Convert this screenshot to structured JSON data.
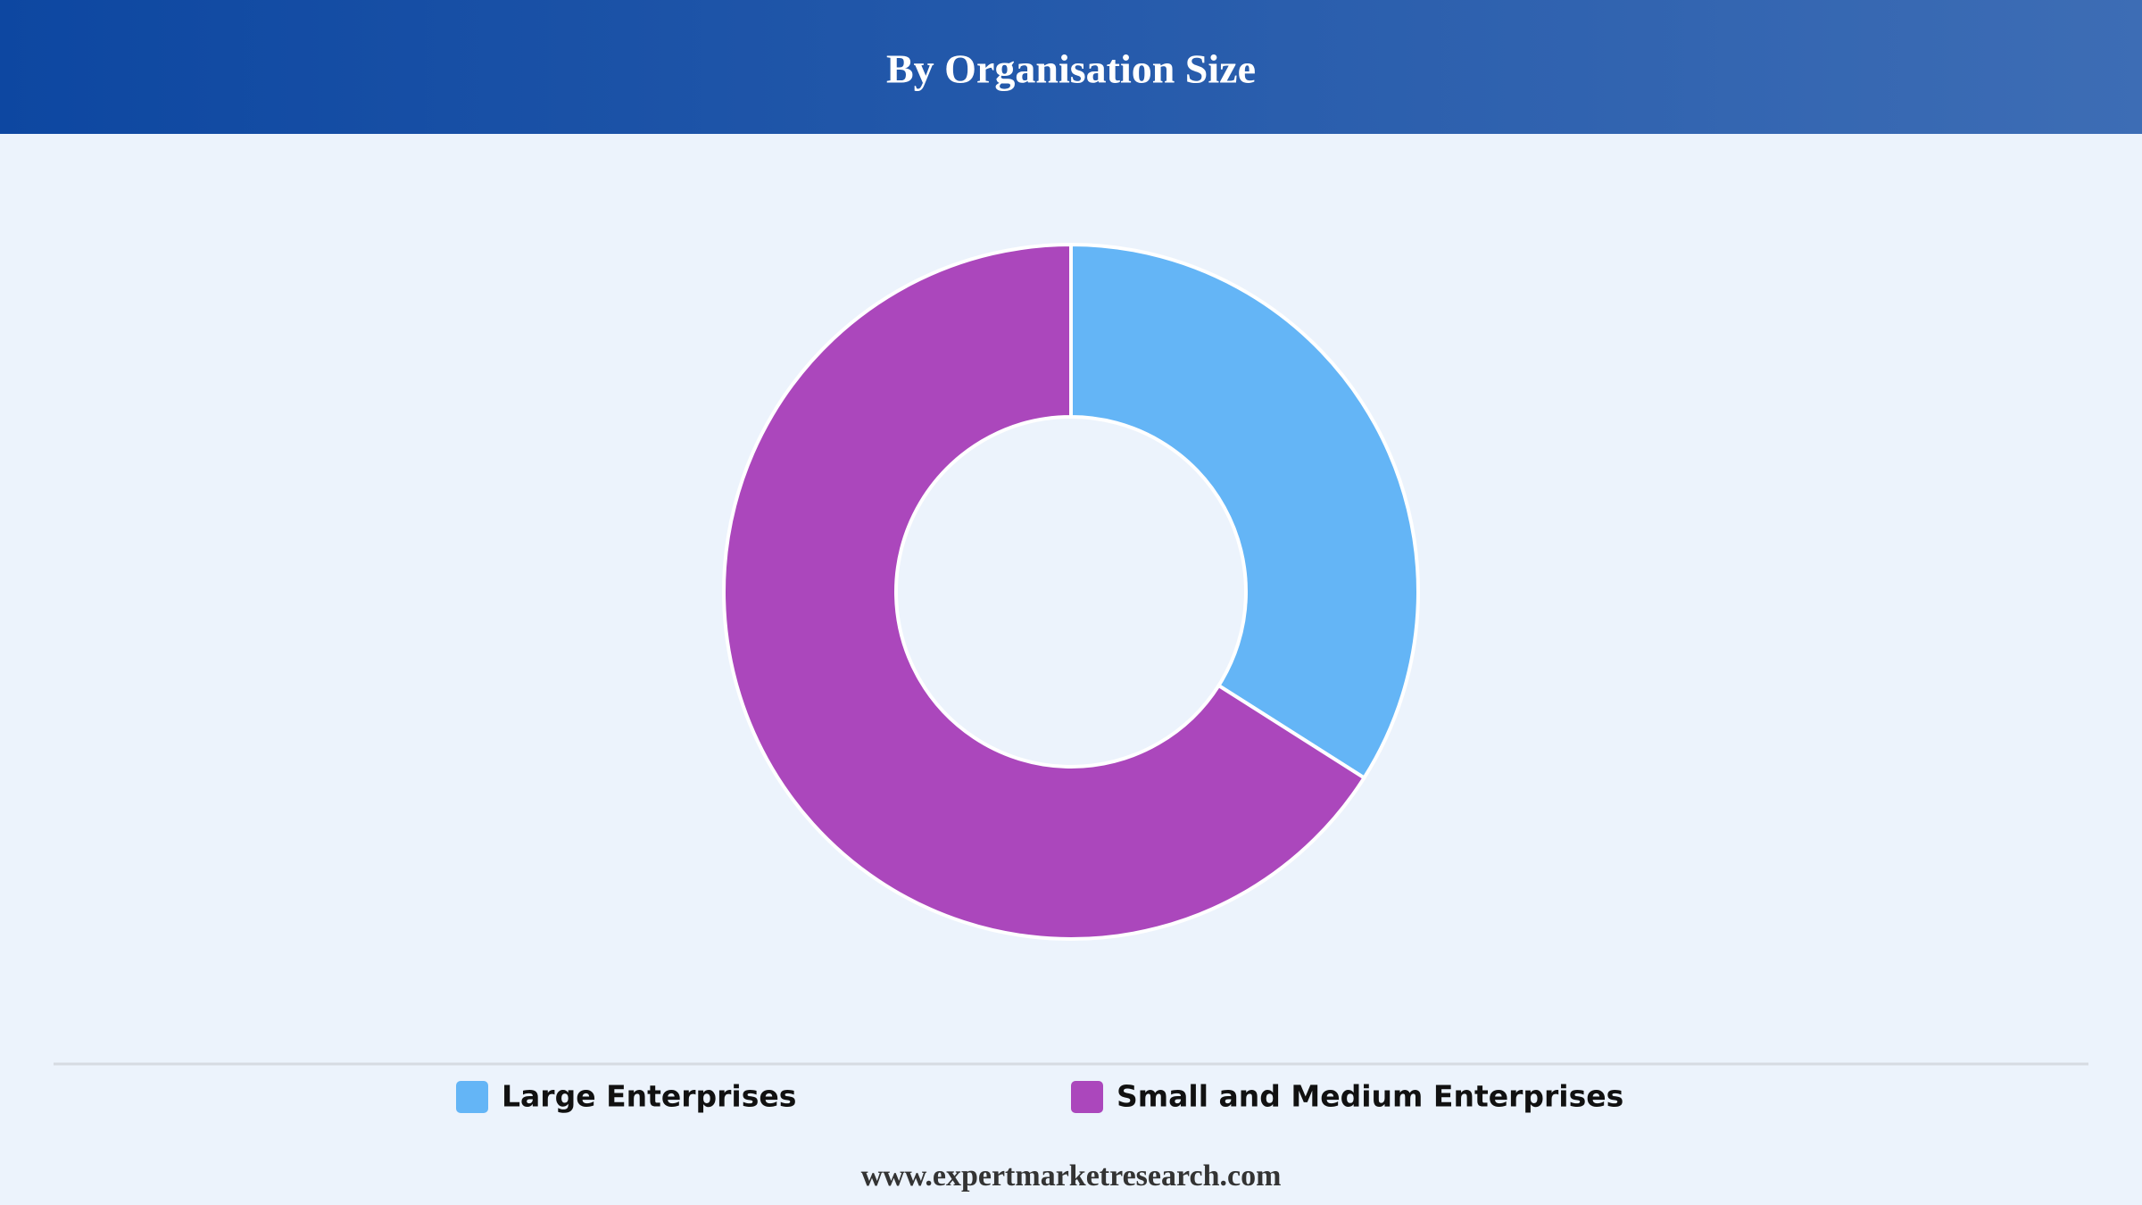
{
  "chart_data": {
    "type": "donut",
    "title": "By Organisation Size",
    "categories": [
      "Large Enterprises",
      "Small and Medium Enterprises"
    ],
    "values": [
      34,
      66
    ],
    "colors": [
      "#64b5f6",
      "#ab47bc"
    ],
    "source": "www.expertmarketresearch.com"
  }
}
